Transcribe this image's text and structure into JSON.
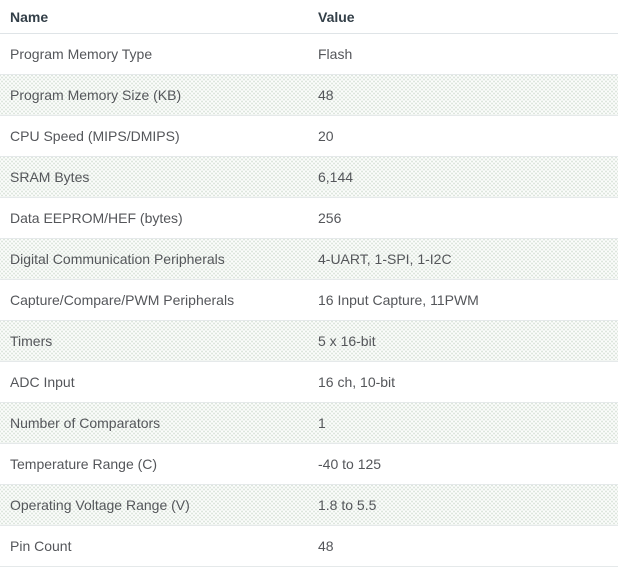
{
  "colors": {
    "header_text": "#333f48",
    "body_text": "#54565a",
    "row_border": "#e5e9ea",
    "header_border": "#dfe4e7",
    "stripe_dot": "#dde6dd",
    "background": "#ffffff"
  },
  "table": {
    "headers": {
      "name": "Name",
      "value": "Value"
    },
    "rows": [
      {
        "name": "Program Memory Type",
        "value": "Flash"
      },
      {
        "name": "Program Memory Size (KB)",
        "value": "48"
      },
      {
        "name": "CPU Speed (MIPS/DMIPS)",
        "value": "20"
      },
      {
        "name": "SRAM Bytes",
        "value": "6,144"
      },
      {
        "name": "Data EEPROM/HEF (bytes)",
        "value": "256"
      },
      {
        "name": "Digital Communication Peripherals",
        "value": "4-UART, 1-SPI, 1-I2C"
      },
      {
        "name": "Capture/Compare/PWM Peripherals",
        "value": "16 Input Capture, 11PWM"
      },
      {
        "name": "Timers",
        "value": "5 x 16-bit"
      },
      {
        "name": "ADC Input",
        "value": "16 ch, 10-bit"
      },
      {
        "name": "Number of Comparators",
        "value": "1"
      },
      {
        "name": "Temperature Range (C)",
        "value": "-40 to 125"
      },
      {
        "name": "Operating Voltage Range (V)",
        "value": "1.8 to 5.5"
      },
      {
        "name": "Pin Count",
        "value": "48"
      }
    ]
  }
}
